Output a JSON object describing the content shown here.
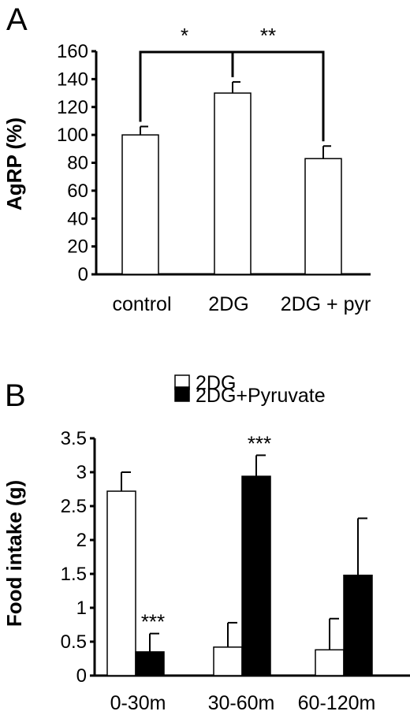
{
  "chart_data": [
    {
      "panel": "A",
      "type": "bar",
      "ylabel": "AgRP (%)",
      "xlabel": "",
      "ylim": [
        0,
        160
      ],
      "yticks": [
        0,
        20,
        40,
        60,
        80,
        100,
        120,
        140,
        160
      ],
      "categories": [
        "control",
        "2DG",
        "2DG + pyr"
      ],
      "values": [
        100,
        130,
        83
      ],
      "errors": [
        6,
        8,
        9
      ],
      "bar_color": "#ffffff",
      "significance": [
        {
          "between": [
            "control",
            "2DG"
          ],
          "label": "*"
        },
        {
          "between": [
            "2DG",
            "2DG + pyr"
          ],
          "label": "**"
        }
      ]
    },
    {
      "panel": "B",
      "type": "bar",
      "ylabel": "Food intake (g)",
      "xlabel": "",
      "ylim": [
        0,
        3.5
      ],
      "yticks": [
        0,
        0.5,
        1,
        1.5,
        2,
        2.5,
        3,
        3.5
      ],
      "categories": [
        "0-30m",
        "30-60m",
        "60-120m"
      ],
      "series": [
        {
          "name": "2DG",
          "color": "#ffffff",
          "values": [
            2.72,
            0.42,
            0.38
          ],
          "errors": [
            0.28,
            0.36,
            0.46
          ]
        },
        {
          "name": "2DG+Pyruvate",
          "color": "#000000",
          "values": [
            0.35,
            2.94,
            1.48
          ],
          "errors": [
            0.27,
            0.31,
            0.84
          ]
        }
      ],
      "annotations": [
        {
          "category": "0-30m",
          "series": "2DG+Pyruvate",
          "label": "***"
        },
        {
          "category": "30-60m",
          "series": "2DG+Pyruvate",
          "label": "***"
        }
      ],
      "legend": "top"
    }
  ]
}
